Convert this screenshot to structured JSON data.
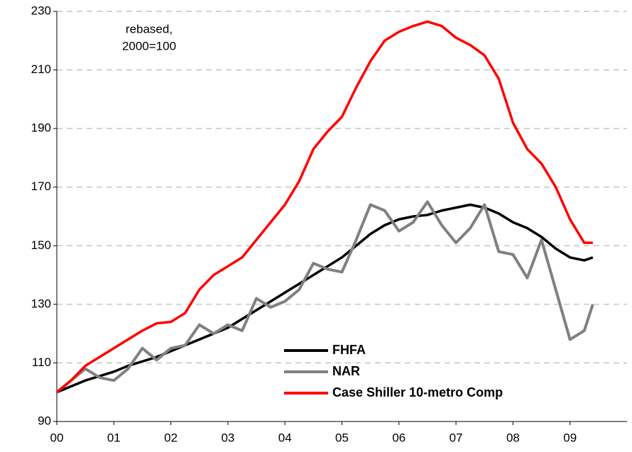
{
  "chart_data": {
    "type": "line",
    "annotation": [
      "rebased,",
      "2000=100"
    ],
    "x": [
      0,
      0.25,
      0.5,
      0.75,
      1,
      1.25,
      1.5,
      1.75,
      2,
      2.25,
      2.5,
      2.75,
      3,
      3.25,
      3.5,
      3.75,
      4,
      4.25,
      4.5,
      4.75,
      5,
      5.25,
      5.5,
      5.75,
      6,
      6.25,
      6.5,
      6.75,
      7,
      7.25,
      7.5,
      7.75,
      8,
      8.25,
      8.5,
      8.75,
      9,
      9.25,
      9.4
    ],
    "series": [
      {
        "name": "FHFA",
        "color": "#000000",
        "values": [
          100,
          102,
          104,
          105.5,
          107,
          109,
          110.5,
          112,
          114,
          116,
          118,
          120,
          122,
          125,
          128,
          131,
          134,
          137,
          140,
          143,
          146,
          150,
          154,
          157,
          159,
          160,
          160.5,
          162,
          163,
          164,
          163,
          161,
          158,
          156,
          153,
          149,
          146,
          145,
          146
        ]
      },
      {
        "name": "NAR",
        "color": "#808080",
        "values": [
          100,
          104,
          108,
          105,
          104,
          108,
          115,
          111,
          115,
          116,
          123,
          120,
          123,
          121,
          132,
          129,
          131,
          135,
          144,
          142,
          141,
          152,
          164,
          162,
          155,
          158,
          165,
          157,
          151,
          156,
          164,
          148,
          147,
          139,
          152,
          135,
          118,
          121,
          130
        ]
      },
      {
        "name": "Case Shiller 10-metro Comp",
        "color": "#ff0000",
        "values": [
          100,
          104,
          109,
          112,
          115,
          118,
          121,
          123.5,
          124,
          127,
          135,
          140,
          143,
          146,
          152,
          158,
          164,
          172,
          183,
          189,
          194,
          204,
          213,
          220,
          223,
          225,
          226.5,
          225,
          221,
          218.5,
          215,
          207,
          192,
          183,
          178,
          170,
          159,
          151,
          151
        ]
      }
    ],
    "xlim": [
      0,
      10
    ],
    "xticks": [
      {
        "value": 0,
        "label": "00"
      },
      {
        "value": 1,
        "label": "01"
      },
      {
        "value": 2,
        "label": "02"
      },
      {
        "value": 3,
        "label": "03"
      },
      {
        "value": 4,
        "label": "04"
      },
      {
        "value": 5,
        "label": "05"
      },
      {
        "value": 6,
        "label": "06"
      },
      {
        "value": 7,
        "label": "07"
      },
      {
        "value": 8,
        "label": "08"
      },
      {
        "value": 9,
        "label": "09"
      }
    ],
    "ylim": [
      90,
      230
    ],
    "yticks": [
      90,
      110,
      130,
      150,
      170,
      190,
      210,
      230
    ],
    "grid": true
  }
}
